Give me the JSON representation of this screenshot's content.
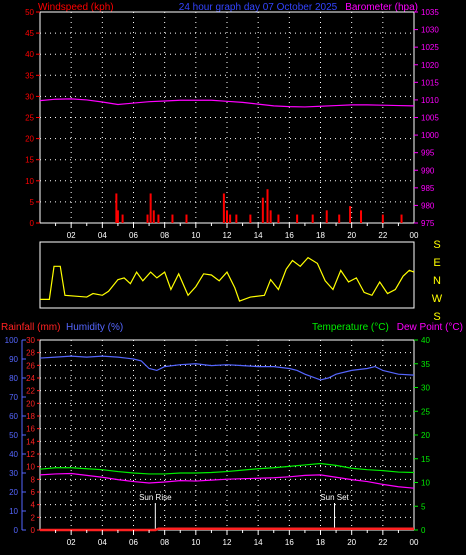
{
  "colors": {
    "background": "#000000",
    "wind": "#ff0000",
    "barometer": "#ff00ff",
    "title": "#3344ff",
    "direction": "#ffff00",
    "rainfall": "#ff2222",
    "humidity": "#5566ff",
    "temperature": "#00ee00",
    "dewpoint": "#ff00ff",
    "grid": "#ffffff",
    "frame": "#ffffff",
    "text": "#ffffff"
  },
  "chart_data": [
    {
      "type": "line",
      "title": "24 hour graph day 07 October 2025",
      "xlabel": "",
      "x_ticks": [
        "02",
        "04",
        "06",
        "08",
        "10",
        "12",
        "14",
        "16",
        "18",
        "20",
        "22",
        "00"
      ],
      "y_left": {
        "label": "Windspeed (kph)",
        "range": [
          0,
          50
        ],
        "ticks": [
          0,
          5,
          10,
          15,
          20,
          25,
          30,
          35,
          40,
          45,
          50
        ]
      },
      "y_right": {
        "label": "Barometer (hpa)",
        "range": [
          975,
          1035
        ],
        "ticks": [
          975,
          980,
          985,
          990,
          995,
          1000,
          1005,
          1010,
          1015,
          1020,
          1025,
          1030,
          1035
        ]
      },
      "grid": true,
      "series": [
        {
          "name": "Barometer (hpa)",
          "axis": "right",
          "type": "line",
          "points": [
            [
              0,
              1009.8
            ],
            [
              1,
              1010.2
            ],
            [
              2,
              1010.3
            ],
            [
              3,
              1010.0
            ],
            [
              4,
              1009.4
            ],
            [
              5,
              1008.7
            ],
            [
              6,
              1009.1
            ],
            [
              7,
              1009.5
            ],
            [
              8,
              1009.7
            ],
            [
              9,
              1009.9
            ],
            [
              10,
              1009.9
            ],
            [
              11,
              1009.9
            ],
            [
              12,
              1009.6
            ],
            [
              13,
              1009.3
            ],
            [
              14,
              1008.8
            ],
            [
              15,
              1008.3
            ],
            [
              16,
              1008.1
            ],
            [
              17,
              1008.0
            ],
            [
              18,
              1008.2
            ],
            [
              19,
              1008.4
            ],
            [
              20,
              1008.6
            ],
            [
              21,
              1008.6
            ],
            [
              22,
              1008.5
            ],
            [
              23,
              1008.4
            ],
            [
              24,
              1008.3
            ]
          ]
        },
        {
          "name": "Windspeed (kph)",
          "axis": "left",
          "type": "bar",
          "points": [
            [
              4.9,
              7
            ],
            [
              5.0,
              3
            ],
            [
              5.3,
              2
            ],
            [
              6.9,
              2
            ],
            [
              7.1,
              7
            ],
            [
              7.3,
              3
            ],
            [
              7.6,
              2
            ],
            [
              8.5,
              2
            ],
            [
              9.4,
              2
            ],
            [
              11.8,
              7
            ],
            [
              12.0,
              3
            ],
            [
              12.2,
              2
            ],
            [
              12.6,
              2
            ],
            [
              13.5,
              2
            ],
            [
              14.3,
              6
            ],
            [
              14.6,
              8
            ],
            [
              14.8,
              3
            ],
            [
              15.3,
              2
            ],
            [
              16.5,
              2
            ],
            [
              17.5,
              2
            ],
            [
              18.4,
              3
            ],
            [
              19.2,
              2
            ],
            [
              19.9,
              4
            ],
            [
              20.6,
              3
            ],
            [
              22.0,
              2
            ],
            [
              23.2,
              2
            ]
          ]
        }
      ]
    },
    {
      "type": "line",
      "title": "",
      "x_ticks": [],
      "y_right": {
        "label": "",
        "ticks": [
          "S",
          "E",
          "N",
          "W",
          "S"
        ]
      },
      "grid": false,
      "series": [
        {
          "name": "",
          "axis": "direction",
          "points": [
            [
              0,
              0.92
            ],
            [
              0.6,
              0.92
            ],
            [
              0.9,
              0.35
            ],
            [
              1.3,
              0.35
            ],
            [
              1.6,
              0.85
            ],
            [
              3,
              0.88
            ],
            [
              3.4,
              0.82
            ],
            [
              4,
              0.85
            ],
            [
              4.4,
              0.78
            ],
            [
              5,
              0.58
            ],
            [
              5.4,
              0.55
            ],
            [
              5.8,
              0.65
            ],
            [
              6.2,
              0.45
            ],
            [
              6.6,
              0.6
            ],
            [
              7.1,
              0.45
            ],
            [
              7.5,
              0.55
            ],
            [
              8,
              0.45
            ],
            [
              8.4,
              0.75
            ],
            [
              8.9,
              0.48
            ],
            [
              9.5,
              0.85
            ],
            [
              10,
              0.7
            ],
            [
              10.5,
              0.48
            ],
            [
              11,
              0.5
            ],
            [
              11.5,
              0.6
            ],
            [
              12,
              0.45
            ],
            [
              12.5,
              0.72
            ],
            [
              12.8,
              0.95
            ],
            [
              13.5,
              0.88
            ],
            [
              14.4,
              0.85
            ],
            [
              14.8,
              0.58
            ],
            [
              15.3,
              0.75
            ],
            [
              15.8,
              0.4
            ],
            [
              16.2,
              0.25
            ],
            [
              16.7,
              0.35
            ],
            [
              17.2,
              0.2
            ],
            [
              17.8,
              0.3
            ],
            [
              18.3,
              0.6
            ],
            [
              18.8,
              0.75
            ],
            [
              19.3,
              0.42
            ],
            [
              19.8,
              0.62
            ],
            [
              20.3,
              0.55
            ],
            [
              20.8,
              0.8
            ],
            [
              21.3,
              0.85
            ],
            [
              21.8,
              0.62
            ],
            [
              22.3,
              0.82
            ],
            [
              22.8,
              0.75
            ],
            [
              23.3,
              0.52
            ],
            [
              23.7,
              0.42
            ],
            [
              24,
              0.45
            ]
          ]
        }
      ]
    },
    {
      "type": "line",
      "title": "",
      "x_ticks": [
        "02",
        "04",
        "06",
        "08",
        "10",
        "12",
        "14",
        "16",
        "18",
        "20",
        "22",
        "00"
      ],
      "y_left_outer": {
        "label": "Humidity (%)",
        "range": [
          0,
          100
        ],
        "ticks": [
          0,
          10,
          20,
          30,
          40,
          50,
          60,
          70,
          80,
          90,
          100
        ]
      },
      "y_left_inner": {
        "label": "Rainfall (mm)",
        "range": [
          0,
          30
        ],
        "ticks": [
          0,
          2,
          4,
          6,
          8,
          10,
          12,
          14,
          16,
          18,
          20,
          22,
          24,
          26,
          28,
          30
        ]
      },
      "y_right": {
        "label": "Temperature (°C)",
        "range": [
          0,
          40
        ],
        "ticks": [
          0,
          5,
          10,
          15,
          20,
          25,
          30,
          35,
          40
        ]
      },
      "dew_point_label": "Dew Point (°C)",
      "grid": true,
      "annotations": [
        {
          "label": "Sun Rise",
          "x": 7.4
        },
        {
          "label": "Sun Set",
          "x": 18.9
        }
      ],
      "series": [
        {
          "name": "Humidity (%)",
          "axis": "humidity",
          "points": [
            [
              0,
              90.5
            ],
            [
              1,
              91
            ],
            [
              2,
              91.5
            ],
            [
              3,
              91
            ],
            [
              4,
              91.5
            ],
            [
              5,
              91
            ],
            [
              6,
              90
            ],
            [
              6.5,
              89
            ],
            [
              7,
              85
            ],
            [
              7.5,
              84
            ],
            [
              8,
              86
            ],
            [
              9,
              87
            ],
            [
              10,
              87.5
            ],
            [
              11,
              86.5
            ],
            [
              12,
              87
            ],
            [
              13,
              86.5
            ],
            [
              14,
              86
            ],
            [
              15,
              86
            ],
            [
              16,
              85
            ],
            [
              16.5,
              84
            ],
            [
              17,
              82
            ],
            [
              18,
              79
            ],
            [
              18.5,
              80
            ],
            [
              19,
              82
            ],
            [
              20,
              84
            ],
            [
              21,
              85
            ],
            [
              21.5,
              86
            ],
            [
              22,
              84
            ],
            [
              23,
              82
            ],
            [
              24,
              81.5
            ]
          ]
        },
        {
          "name": "Temperature (°C)",
          "axis": "temperature",
          "points": [
            [
              0,
              12.8
            ],
            [
              1,
              13.1
            ],
            [
              2,
              13.1
            ],
            [
              3,
              12.9
            ],
            [
              4,
              12.7
            ],
            [
              5,
              12.3
            ],
            [
              6,
              12.0
            ],
            [
              7,
              11.8
            ],
            [
              8,
              11.8
            ],
            [
              9,
              12.0
            ],
            [
              10,
              12.0
            ],
            [
              11,
              12.1
            ],
            [
              12,
              12.3
            ],
            [
              13,
              12.6
            ],
            [
              14,
              12.9
            ],
            [
              15,
              13.1
            ],
            [
              16,
              13.4
            ],
            [
              17,
              13.7
            ],
            [
              18,
              14.0
            ],
            [
              19,
              13.6
            ],
            [
              20,
              13.0
            ],
            [
              21,
              12.7
            ],
            [
              22,
              12.5
            ],
            [
              23,
              12.2
            ],
            [
              24,
              12.1
            ]
          ]
        },
        {
          "name": "Dew Point (°C)",
          "axis": "temperature",
          "points": [
            [
              0,
              11.6
            ],
            [
              1,
              11.8
            ],
            [
              2,
              11.9
            ],
            [
              3,
              11.5
            ],
            [
              4,
              11.1
            ],
            [
              5,
              10.6
            ],
            [
              6,
              10.2
            ],
            [
              7,
              9.9
            ],
            [
              8,
              10.1
            ],
            [
              9,
              10.4
            ],
            [
              10,
              10.3
            ],
            [
              11,
              10.5
            ],
            [
              12,
              10.7
            ],
            [
              13,
              10.8
            ],
            [
              14,
              10.9
            ],
            [
              15,
              11.0
            ],
            [
              16,
              11.2
            ],
            [
              17,
              11.5
            ],
            [
              18,
              11.6
            ],
            [
              19,
              11.1
            ],
            [
              20,
              10.6
            ],
            [
              21,
              10.2
            ],
            [
              22,
              9.6
            ],
            [
              23,
              9.1
            ],
            [
              24,
              8.8
            ]
          ]
        },
        {
          "name": "Rainfall (mm)",
          "axis": "rainfall",
          "points": [
            [
              0,
              0
            ],
            [
              7.4,
              0
            ],
            [
              7.6,
              0.2
            ],
            [
              24,
              0.2
            ]
          ]
        }
      ]
    }
  ]
}
